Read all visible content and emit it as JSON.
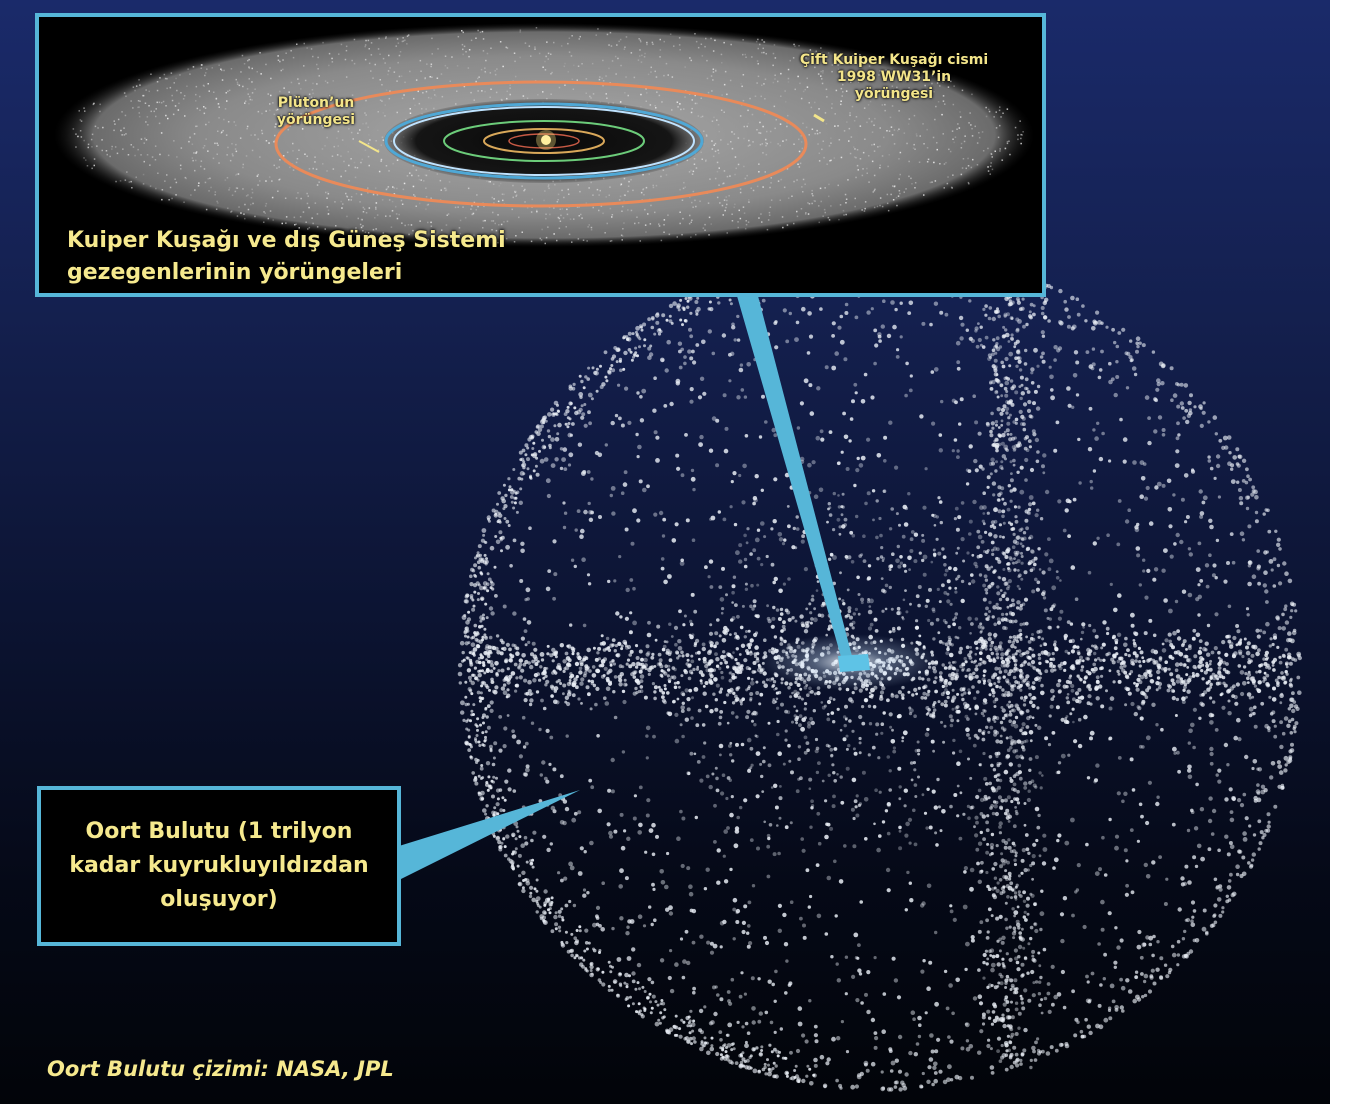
{
  "kuiper_inset": {
    "pluto_orbit_label": "Plüton’un\nyörüngesi",
    "ww31_orbit_label": "Çift Kuiper Kuşağı cismi\n1998 WW31’in\nyörüngesi",
    "title": "Kuiper Kuşağı ve dış Güneş Sistemi\ngezegenlerinin yörüngeleri"
  },
  "oort_box": {
    "label": "Oort Bulutu (1 trilyon\nkadar kuyrukluyıldızdan\noluşuyor)"
  },
  "credit": "Oort Bulutu çizimi: NASA, JPL",
  "colors": {
    "frame": "#56b6d8",
    "label_text": "#f6e98e",
    "pluto_orbit": "#e98a5a",
    "dots": "#e9eef5"
  }
}
